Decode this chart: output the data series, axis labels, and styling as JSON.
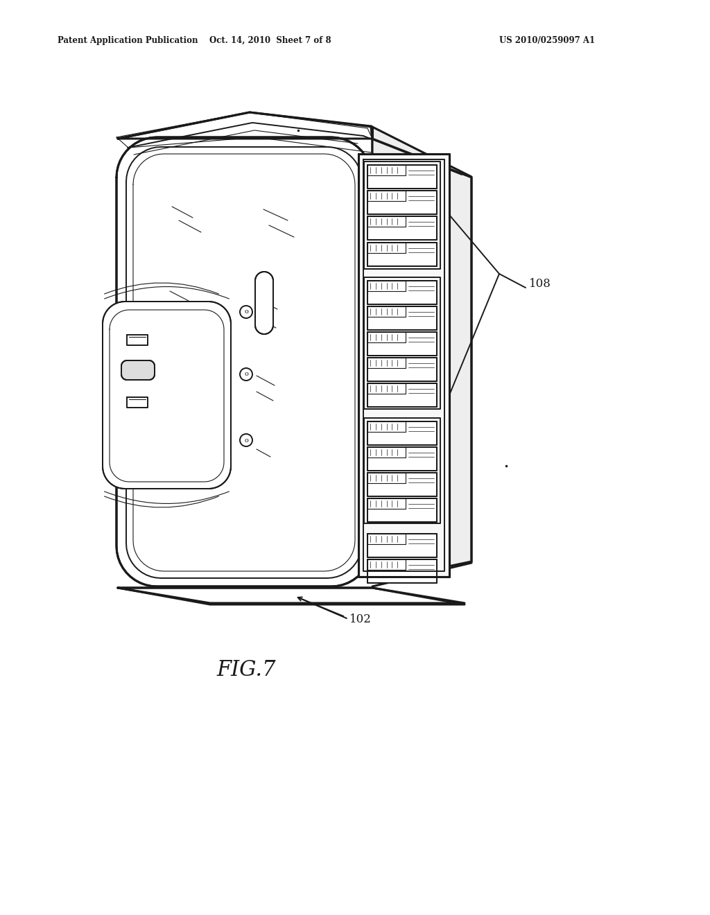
{
  "bg_color": "#ffffff",
  "lc": "#1a1a1a",
  "header_left": "Patent Application Publication",
  "header_center": "Oct. 14, 2010  Sheet 7 of 8",
  "header_right": "US 2010/0259097 A1",
  "figure_label": "FIG.7",
  "label_102": "102",
  "label_108": "108",
  "lw_hair": 0.5,
  "lw_thin": 0.8,
  "lw_med": 1.4,
  "lw_thick": 2.2,
  "lw_xthick": 3.0
}
